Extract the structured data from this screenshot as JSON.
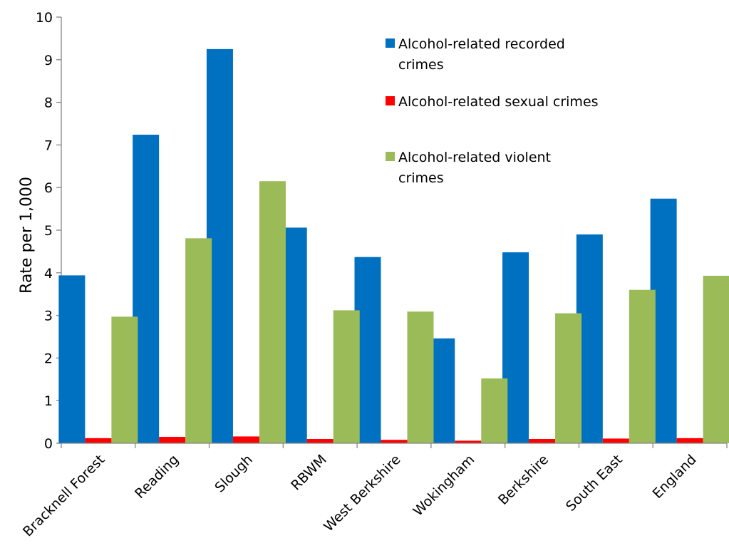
{
  "chart_data": {
    "type": "bar",
    "title": "",
    "xlabel": "",
    "ylabel": "Rate per 1,000",
    "ylim": [
      0,
      10
    ],
    "yticks": [
      0,
      1,
      2,
      3,
      4,
      5,
      6,
      7,
      8,
      9,
      10
    ],
    "grid": false,
    "legend_position": "top-right",
    "categories": [
      "Bracknell Forest",
      "Reading",
      "Slough",
      "RBWM",
      "West Berkshire",
      "Wokingham",
      "Berkshire",
      "South East",
      "England"
    ],
    "series": [
      {
        "name": "Alcohol-related recorded crimes",
        "legend_lines": [
          "Alcohol-related recorded",
          "crimes"
        ],
        "color": "#0070C0",
        "values": [
          3.94,
          7.24,
          9.25,
          5.06,
          4.37,
          2.46,
          4.48,
          4.9,
          5.74
        ]
      },
      {
        "name": "Alcohol-related sexual crimes",
        "legend_lines": [
          "Alcohol-related sexual crimes"
        ],
        "color": "#FF0000",
        "values": [
          0.12,
          0.15,
          0.16,
          0.1,
          0.08,
          0.06,
          0.1,
          0.11,
          0.12
        ]
      },
      {
        "name": "Alcohol-related violent crimes",
        "legend_lines": [
          "Alcohol-related violent",
          "crimes"
        ],
        "color": "#9BBB59",
        "values": [
          2.97,
          4.81,
          6.15,
          3.12,
          3.09,
          1.52,
          3.05,
          3.6,
          3.93
        ]
      }
    ]
  }
}
